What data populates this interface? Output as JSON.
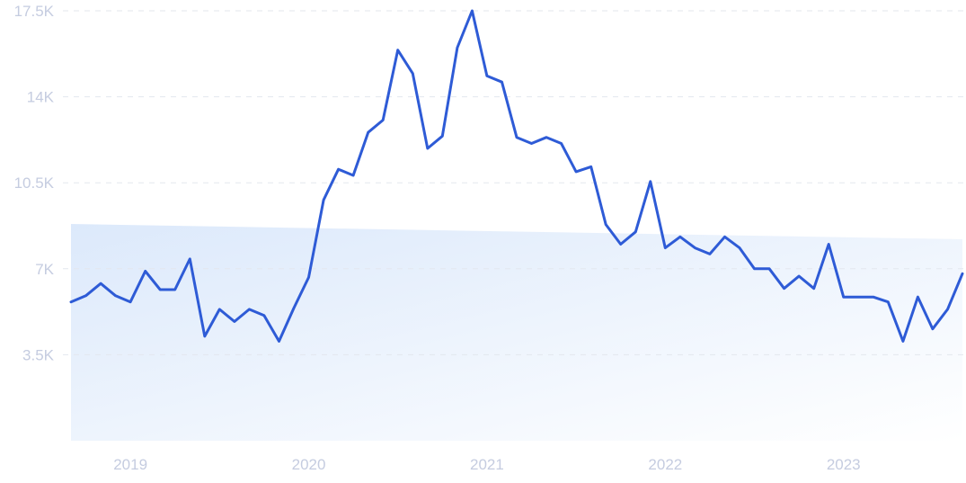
{
  "chart_data": {
    "type": "line",
    "title": "",
    "xlabel": "",
    "ylabel": "",
    "x_range": [
      "2018-09-01",
      "2023-09-01"
    ],
    "ylim": [
      0,
      17500
    ],
    "y_ticks": [
      {
        "value": 3500,
        "label": "3.5K"
      },
      {
        "value": 7000,
        "label": "7K"
      },
      {
        "value": 10500,
        "label": "10.5K"
      },
      {
        "value": 14000,
        "label": "14K"
      },
      {
        "value": 17500,
        "label": "17.5K"
      }
    ],
    "x_ticks": [
      {
        "value": "2019-01-01",
        "label": "2019"
      },
      {
        "value": "2020-01-01",
        "label": "2020"
      },
      {
        "value": "2021-01-01",
        "label": "2021"
      },
      {
        "value": "2022-01-01",
        "label": "2022"
      },
      {
        "value": "2023-01-01",
        "label": "2023"
      }
    ],
    "grid": true,
    "line_color": "#2e5bd6",
    "series": [
      {
        "x": [
          "2018-09",
          "2018-10",
          "2018-11",
          "2018-12",
          "2019-01",
          "2019-02",
          "2019-03",
          "2019-04",
          "2019-05",
          "2019-06",
          "2019-07",
          "2019-08",
          "2019-09",
          "2019-10",
          "2019-11",
          "2019-12",
          "2020-01",
          "2020-02",
          "2020-03",
          "2020-04",
          "2020-05",
          "2020-06",
          "2020-07",
          "2020-08",
          "2020-09",
          "2020-10",
          "2020-11",
          "2020-12",
          "2021-01",
          "2021-02",
          "2021-03",
          "2021-04",
          "2021-05",
          "2021-06",
          "2021-07",
          "2021-08",
          "2021-09",
          "2021-10",
          "2021-11",
          "2021-12",
          "2022-01",
          "2022-02",
          "2022-03",
          "2022-04",
          "2022-05",
          "2022-06",
          "2022-07",
          "2022-08",
          "2022-09",
          "2022-10",
          "2022-11",
          "2022-12",
          "2023-01",
          "2023-02",
          "2023-03",
          "2023-04",
          "2023-05",
          "2023-06",
          "2023-07",
          "2023-08",
          "2023-09"
        ],
        "values": [
          5650,
          5900,
          6400,
          5900,
          5650,
          6900,
          6150,
          6150,
          7400,
          4250,
          5350,
          4850,
          5350,
          5100,
          4050,
          5400,
          6650,
          9800,
          11050,
          10800,
          12550,
          13050,
          15900,
          14950,
          11900,
          12400,
          16000,
          17500,
          14850,
          14600,
          12350,
          12100,
          12350,
          12100,
          10950,
          11150,
          8800,
          8000,
          8500,
          10550,
          7850,
          8300,
          7850,
          7600,
          8300,
          7850,
          7000,
          7000,
          6200,
          6700,
          6200,
          8000,
          5850,
          5850,
          5850,
          5650,
          4050,
          5850,
          4550,
          5350,
          6800
        ]
      }
    ]
  }
}
